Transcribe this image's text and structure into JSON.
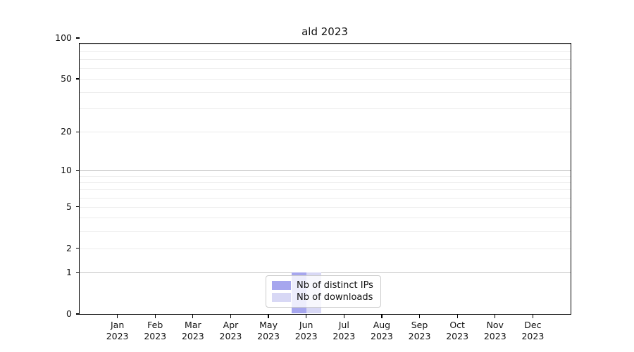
{
  "title": "ald 2023",
  "legend": {
    "items": [
      {
        "label": "Nb of distinct IPs",
        "color": "#a6a6ee"
      },
      {
        "label": "Nb of downloads",
        "color": "#d8d8f5"
      }
    ]
  },
  "chart_data": {
    "type": "bar",
    "title": "ald 2023",
    "categories": [
      "Jan 2023",
      "Feb 2023",
      "Mar 2023",
      "Apr 2023",
      "May 2023",
      "Jun 2023",
      "Jul 2023",
      "Aug 2023",
      "Sep 2023",
      "Oct 2023",
      "Nov 2023",
      "Dec 2023"
    ],
    "x_months": [
      "Jan",
      "Feb",
      "Mar",
      "Apr",
      "May",
      "Jun",
      "Jul",
      "Aug",
      "Sep",
      "Oct",
      "Nov",
      "Dec"
    ],
    "x_year": "2023",
    "series": [
      {
        "name": "Nb of distinct IPs",
        "color": "#a6a6ee",
        "values": [
          0,
          0,
          0,
          0,
          0,
          1,
          0,
          0,
          0,
          0,
          0,
          0
        ]
      },
      {
        "name": "Nb of downloads",
        "color": "#d8d8f5",
        "values": [
          0,
          0,
          0,
          0,
          0,
          1,
          0,
          0,
          0,
          0,
          0,
          0
        ]
      }
    ],
    "xlabel": "",
    "ylabel": "",
    "y_scale": "log1p",
    "ylim": [
      0,
      111
    ],
    "y_ticks": [
      0,
      1,
      2,
      5,
      10,
      20,
      50,
      100
    ],
    "y_major_gridlines": [
      1,
      10,
      100
    ],
    "y_minor_gridlines": [
      2,
      3,
      4,
      5,
      6,
      7,
      8,
      9,
      20,
      30,
      40,
      50,
      60,
      70,
      80,
      90
    ],
    "grid": "horizontal only",
    "legend_position": "lower center"
  },
  "colors": {
    "spine": "#000000",
    "major_grid": "#c4c4c4",
    "minor_grid": "#ececec",
    "text": "#111111",
    "background": "#ffffff"
  }
}
